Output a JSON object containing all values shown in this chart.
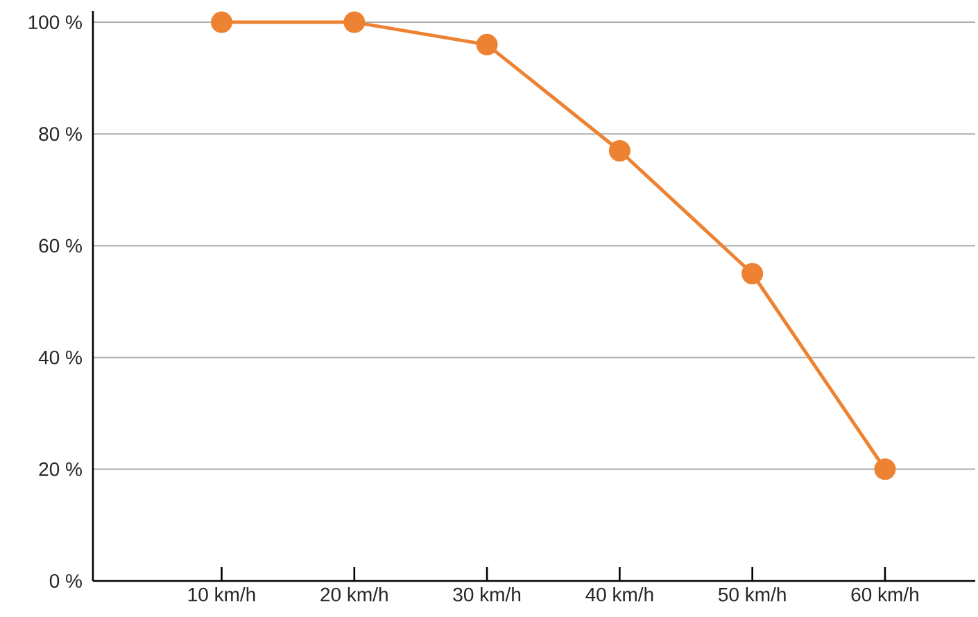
{
  "chart_data": {
    "type": "line",
    "categories": [
      "10 km/h",
      "20 km/h",
      "30 km/h",
      "40 km/h",
      "50 km/h",
      "60 km/h"
    ],
    "series": [
      {
        "color": "#ec8232",
        "values": [
          100,
          100,
          96,
          77,
          55,
          20
        ]
      }
    ],
    "ylim": [
      0,
      102
    ],
    "yticks": [
      {
        "value": 0,
        "label": "0 %"
      },
      {
        "value": 20,
        "label": "20 %"
      },
      {
        "value": 40,
        "label": "40 %"
      },
      {
        "value": 60,
        "label": "60 %"
      },
      {
        "value": 80,
        "label": "80 %"
      },
      {
        "value": 100,
        "label": "100 %"
      }
    ],
    "grid": "y",
    "marker": "circle",
    "line_style": "solid"
  }
}
